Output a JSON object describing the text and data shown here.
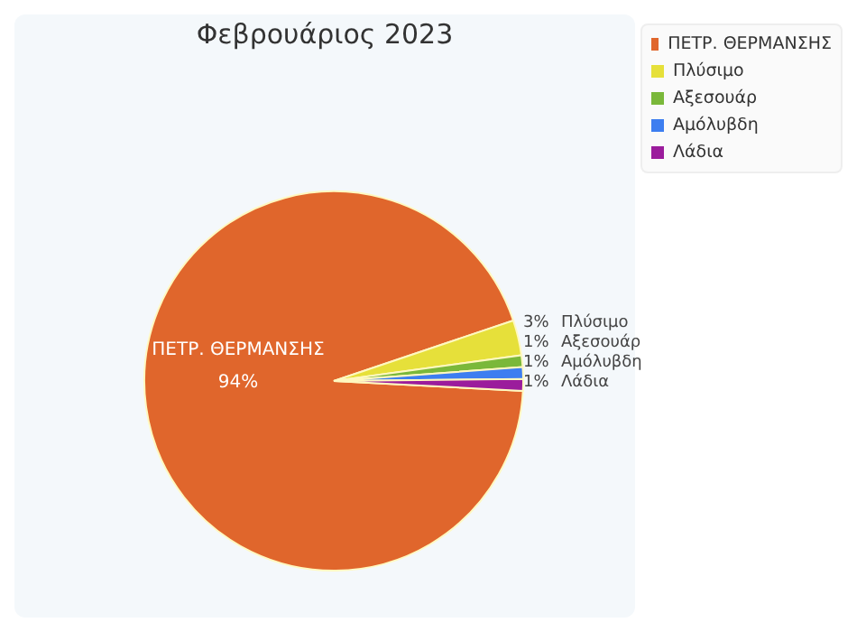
{
  "chart_data": {
    "type": "pie",
    "title": "Φεβρουάριος 2023",
    "categories": [
      "ΠΕΤΡ. ΘΕΡΜΑΝΣΗΣ",
      "Πλύσιμο",
      "Αξεσουάρ",
      "Αμόλυβδη",
      "Λάδια"
    ],
    "values": [
      94,
      3,
      1,
      1,
      1
    ],
    "colors": [
      "#e0662c",
      "#e6e03a",
      "#7ab83a",
      "#3d7ef0",
      "#9b1c9c"
    ],
    "value_labels": [
      "94%",
      "3%",
      "1%",
      "1%",
      "1%"
    ],
    "legend": "top right"
  }
}
